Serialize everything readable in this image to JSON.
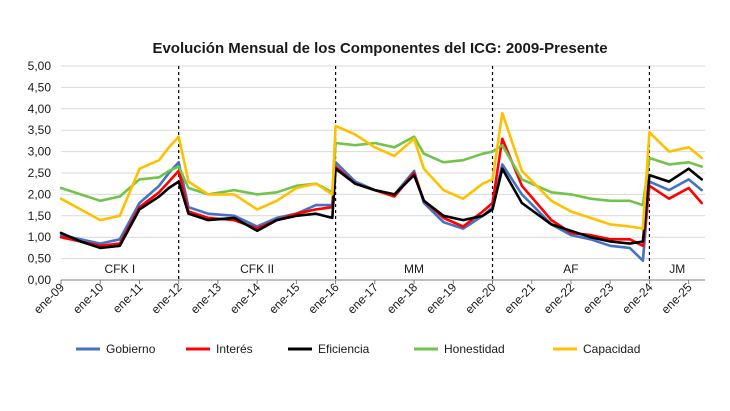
{
  "chart_data": {
    "type": "line",
    "title": "Evolución Mensual de los Componentes del ICG: 2009-Presente",
    "ylim": [
      0,
      5
    ],
    "y_ticks": [
      "0,00",
      "0,50",
      "1,00",
      "1,50",
      "2,00",
      "2,50",
      "3,00",
      "3,50",
      "4,00",
      "4,50",
      "5,00"
    ],
    "x_ticks": [
      "ene-09",
      "ene-10",
      "ene-11",
      "ene-12",
      "ene-13",
      "ene-14",
      "ene-15",
      "ene-16",
      "ene-17",
      "ene-18",
      "ene-19",
      "ene-20",
      "ene-21",
      "ene-22",
      "ene-23",
      "ene-24",
      "ene-25"
    ],
    "grid": "horizontal",
    "legend": "bottom",
    "x_start": "2009-01",
    "periods": [
      {
        "label": "CFK I",
        "start": "2009-01"
      },
      {
        "label": "CFK II",
        "start": "2012-01"
      },
      {
        "label": "MM",
        "start": "2016-01"
      },
      {
        "label": "AF",
        "start": "2020-01"
      },
      {
        "label": "JM",
        "start": "2024-01"
      }
    ],
    "series": [
      {
        "name": "Gobierno",
        "color": "#4472c4",
        "points": [
          [
            "2009-01",
            1.05
          ],
          [
            "2009-07",
            0.95
          ],
          [
            "2010-01",
            0.85
          ],
          [
            "2010-07",
            0.95
          ],
          [
            "2011-01",
            1.8
          ],
          [
            "2011-07",
            2.2
          ],
          [
            "2011-10",
            2.5
          ],
          [
            "2012-01",
            2.75
          ],
          [
            "2012-04",
            1.7
          ],
          [
            "2012-10",
            1.55
          ],
          [
            "2013-06",
            1.5
          ],
          [
            "2014-01",
            1.25
          ],
          [
            "2014-07",
            1.45
          ],
          [
            "2015-01",
            1.55
          ],
          [
            "2015-07",
            1.75
          ],
          [
            "2015-12",
            1.75
          ],
          [
            "2016-01",
            2.75
          ],
          [
            "2016-07",
            2.3
          ],
          [
            "2017-01",
            2.1
          ],
          [
            "2017-07",
            2.0
          ],
          [
            "2018-01",
            2.55
          ],
          [
            "2018-04",
            1.8
          ],
          [
            "2018-10",
            1.35
          ],
          [
            "2019-04",
            1.2
          ],
          [
            "2019-10",
            1.5
          ],
          [
            "2020-01",
            1.7
          ],
          [
            "2020-04",
            2.7
          ],
          [
            "2020-10",
            2.0
          ],
          [
            "2021-07",
            1.3
          ],
          [
            "2022-01",
            1.05
          ],
          [
            "2022-07",
            0.95
          ],
          [
            "2023-01",
            0.8
          ],
          [
            "2023-07",
            0.75
          ],
          [
            "2023-11",
            0.45
          ],
          [
            "2024-01",
            2.3
          ],
          [
            "2024-07",
            2.1
          ],
          [
            "2025-01",
            2.35
          ],
          [
            "2025-05",
            2.1
          ]
        ]
      },
      {
        "name": "Interés",
        "color": "#ff0000",
        "points": [
          [
            "2009-01",
            1.0
          ],
          [
            "2009-07",
            0.9
          ],
          [
            "2010-01",
            0.8
          ],
          [
            "2010-07",
            0.85
          ],
          [
            "2011-01",
            1.7
          ],
          [
            "2011-07",
            2.05
          ],
          [
            "2011-10",
            2.3
          ],
          [
            "2012-01",
            2.55
          ],
          [
            "2012-04",
            1.6
          ],
          [
            "2012-10",
            1.45
          ],
          [
            "2013-06",
            1.4
          ],
          [
            "2014-01",
            1.2
          ],
          [
            "2014-07",
            1.4
          ],
          [
            "2015-01",
            1.55
          ],
          [
            "2015-07",
            1.65
          ],
          [
            "2015-12",
            1.7
          ],
          [
            "2016-01",
            2.65
          ],
          [
            "2016-07",
            2.25
          ],
          [
            "2017-01",
            2.1
          ],
          [
            "2017-07",
            1.95
          ],
          [
            "2018-01",
            2.5
          ],
          [
            "2018-04",
            1.85
          ],
          [
            "2018-10",
            1.45
          ],
          [
            "2019-04",
            1.25
          ],
          [
            "2019-10",
            1.6
          ],
          [
            "2020-01",
            1.8
          ],
          [
            "2020-04",
            3.3
          ],
          [
            "2020-10",
            2.2
          ],
          [
            "2021-07",
            1.4
          ],
          [
            "2022-01",
            1.1
          ],
          [
            "2022-07",
            1.05
          ],
          [
            "2023-01",
            0.95
          ],
          [
            "2023-07",
            0.95
          ],
          [
            "2023-11",
            0.8
          ],
          [
            "2024-01",
            2.2
          ],
          [
            "2024-07",
            1.9
          ],
          [
            "2025-01",
            2.15
          ],
          [
            "2025-05",
            1.8
          ]
        ]
      },
      {
        "name": "Eficiencia",
        "color": "#000000",
        "points": [
          [
            "2009-01",
            1.1
          ],
          [
            "2009-07",
            0.9
          ],
          [
            "2010-01",
            0.75
          ],
          [
            "2010-07",
            0.8
          ],
          [
            "2011-01",
            1.65
          ],
          [
            "2011-07",
            1.95
          ],
          [
            "2011-10",
            2.15
          ],
          [
            "2012-01",
            2.3
          ],
          [
            "2012-04",
            1.55
          ],
          [
            "2012-10",
            1.4
          ],
          [
            "2013-06",
            1.45
          ],
          [
            "2014-01",
            1.15
          ],
          [
            "2014-07",
            1.4
          ],
          [
            "2015-01",
            1.5
          ],
          [
            "2015-07",
            1.55
          ],
          [
            "2015-12",
            1.45
          ],
          [
            "2016-01",
            2.6
          ],
          [
            "2016-07",
            2.25
          ],
          [
            "2017-01",
            2.1
          ],
          [
            "2017-07",
            2.0
          ],
          [
            "2018-01",
            2.45
          ],
          [
            "2018-04",
            1.85
          ],
          [
            "2018-10",
            1.5
          ],
          [
            "2019-04",
            1.4
          ],
          [
            "2019-10",
            1.5
          ],
          [
            "2020-01",
            1.65
          ],
          [
            "2020-04",
            2.6
          ],
          [
            "2020-10",
            1.8
          ],
          [
            "2021-07",
            1.3
          ],
          [
            "2022-01",
            1.15
          ],
          [
            "2022-07",
            1.0
          ],
          [
            "2023-01",
            0.9
          ],
          [
            "2023-07",
            0.85
          ],
          [
            "2023-11",
            0.9
          ],
          [
            "2024-01",
            2.45
          ],
          [
            "2024-07",
            2.3
          ],
          [
            "2025-01",
            2.6
          ],
          [
            "2025-05",
            2.35
          ]
        ]
      },
      {
        "name": "Honestidad",
        "color": "#70c449",
        "points": [
          [
            "2009-01",
            2.15
          ],
          [
            "2009-07",
            2.0
          ],
          [
            "2010-01",
            1.85
          ],
          [
            "2010-07",
            1.95
          ],
          [
            "2011-01",
            2.35
          ],
          [
            "2011-07",
            2.4
          ],
          [
            "2011-10",
            2.55
          ],
          [
            "2012-01",
            2.65
          ],
          [
            "2012-04",
            2.15
          ],
          [
            "2012-10",
            2.0
          ],
          [
            "2013-06",
            2.1
          ],
          [
            "2014-01",
            2.0
          ],
          [
            "2014-07",
            2.05
          ],
          [
            "2015-01",
            2.2
          ],
          [
            "2015-07",
            2.25
          ],
          [
            "2015-12",
            2.05
          ],
          [
            "2016-01",
            3.2
          ],
          [
            "2016-07",
            3.15
          ],
          [
            "2017-01",
            3.2
          ],
          [
            "2017-07",
            3.1
          ],
          [
            "2018-01",
            3.35
          ],
          [
            "2018-04",
            2.95
          ],
          [
            "2018-10",
            2.75
          ],
          [
            "2019-04",
            2.8
          ],
          [
            "2019-10",
            2.95
          ],
          [
            "2020-01",
            3.0
          ],
          [
            "2020-04",
            3.15
          ],
          [
            "2020-10",
            2.35
          ],
          [
            "2021-07",
            2.05
          ],
          [
            "2022-01",
            2.0
          ],
          [
            "2022-07",
            1.9
          ],
          [
            "2023-01",
            1.85
          ],
          [
            "2023-07",
            1.85
          ],
          [
            "2023-11",
            1.75
          ],
          [
            "2024-01",
            2.85
          ],
          [
            "2024-07",
            2.7
          ],
          [
            "2025-01",
            2.75
          ],
          [
            "2025-05",
            2.65
          ]
        ]
      },
      {
        "name": "Capacidad",
        "color": "#ffc000",
        "points": [
          [
            "2009-01",
            1.9
          ],
          [
            "2009-07",
            1.65
          ],
          [
            "2010-01",
            1.4
          ],
          [
            "2010-07",
            1.5
          ],
          [
            "2011-01",
            2.6
          ],
          [
            "2011-07",
            2.8
          ],
          [
            "2011-10",
            3.1
          ],
          [
            "2012-01",
            3.35
          ],
          [
            "2012-04",
            2.3
          ],
          [
            "2012-10",
            2.0
          ],
          [
            "2013-06",
            2.0
          ],
          [
            "2014-01",
            1.65
          ],
          [
            "2014-07",
            1.85
          ],
          [
            "2015-01",
            2.15
          ],
          [
            "2015-07",
            2.25
          ],
          [
            "2015-12",
            2.0
          ],
          [
            "2016-01",
            3.6
          ],
          [
            "2016-07",
            3.4
          ],
          [
            "2017-01",
            3.1
          ],
          [
            "2017-07",
            2.9
          ],
          [
            "2018-01",
            3.3
          ],
          [
            "2018-04",
            2.6
          ],
          [
            "2018-10",
            2.1
          ],
          [
            "2019-04",
            1.9
          ],
          [
            "2019-10",
            2.25
          ],
          [
            "2020-01",
            2.35
          ],
          [
            "2020-04",
            3.9
          ],
          [
            "2020-10",
            2.55
          ],
          [
            "2021-07",
            1.85
          ],
          [
            "2022-01",
            1.6
          ],
          [
            "2022-07",
            1.45
          ],
          [
            "2023-01",
            1.3
          ],
          [
            "2023-07",
            1.25
          ],
          [
            "2023-11",
            1.2
          ],
          [
            "2024-01",
            3.45
          ],
          [
            "2024-07",
            3.0
          ],
          [
            "2025-01",
            3.1
          ],
          [
            "2025-05",
            2.85
          ]
        ]
      }
    ]
  }
}
